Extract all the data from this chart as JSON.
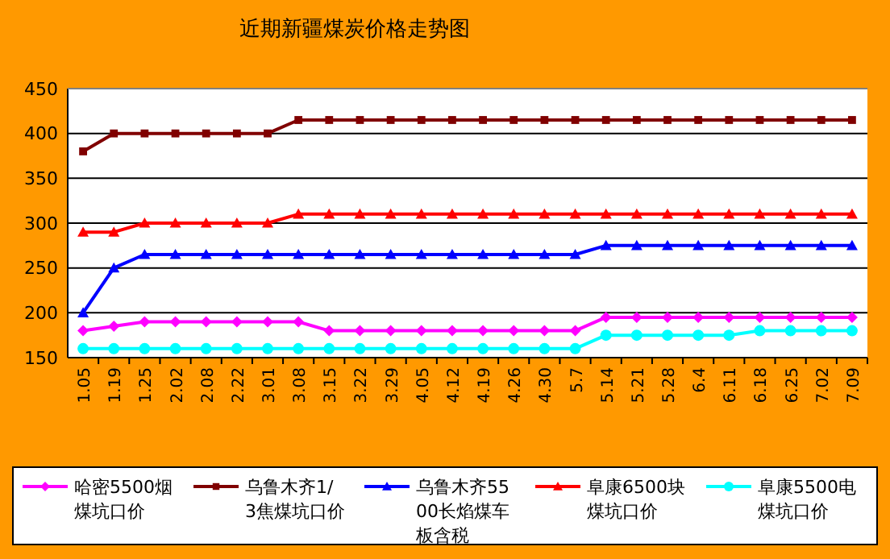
{
  "chart_data": {
    "type": "line",
    "title": "近期新疆煤炭价格走势图",
    "categories": [
      "1.05",
      "1.19",
      "1.25",
      "2.02",
      "2.08",
      "2.22",
      "3.01",
      "3.08",
      "3.15",
      "3.22",
      "3.29",
      "4.05",
      "4.12",
      "4.19",
      "4.26",
      "4.30",
      "5.7",
      "5.14",
      "5.21",
      "5.28",
      "6.4",
      "6.11",
      "6.18",
      "6.25",
      "7.02",
      "7.09"
    ],
    "series": [
      {
        "name": "哈密5500烟煤坑口价",
        "color": "#ff00ff",
        "marker": "diamond",
        "values": [
          180,
          185,
          190,
          190,
          190,
          190,
          190,
          190,
          180,
          180,
          180,
          180,
          180,
          180,
          180,
          180,
          180,
          195,
          195,
          195,
          195,
          195,
          195,
          195,
          195,
          195
        ]
      },
      {
        "name": "乌鲁木齐1/3焦煤坑口价",
        "color": "#800000",
        "marker": "square",
        "values": [
          380,
          400,
          400,
          400,
          400,
          400,
          400,
          415,
          415,
          415,
          415,
          415,
          415,
          415,
          415,
          415,
          415,
          415,
          415,
          415,
          415,
          415,
          415,
          415,
          415,
          415
        ]
      },
      {
        "name": "乌鲁木齐5500长焰煤车板含税",
        "color": "#0000ff",
        "marker": "triangle",
        "values": [
          200,
          250,
          265,
          265,
          265,
          265,
          265,
          265,
          265,
          265,
          265,
          265,
          265,
          265,
          265,
          265,
          265,
          275,
          275,
          275,
          275,
          275,
          275,
          275,
          275,
          275
        ]
      },
      {
        "name": "阜康6500块煤坑口价",
        "color": "#ff0000",
        "marker": "triangle",
        "values": [
          290,
          290,
          300,
          300,
          300,
          300,
          300,
          310,
          310,
          310,
          310,
          310,
          310,
          310,
          310,
          310,
          310,
          310,
          310,
          310,
          310,
          310,
          310,
          310,
          310,
          310
        ]
      },
      {
        "name": "阜康5500电煤坑口价",
        "color": "#00ffff",
        "marker": "circle",
        "values": [
          160,
          160,
          160,
          160,
          160,
          160,
          160,
          160,
          160,
          160,
          160,
          160,
          160,
          160,
          160,
          160,
          160,
          175,
          175,
          175,
          175,
          175,
          180,
          180,
          180,
          180
        ]
      }
    ],
    "ylim": [
      150,
      450
    ],
    "yticks": [
      150,
      200,
      250,
      300,
      350,
      400,
      450
    ],
    "grid": "y",
    "legend": "bottom"
  }
}
